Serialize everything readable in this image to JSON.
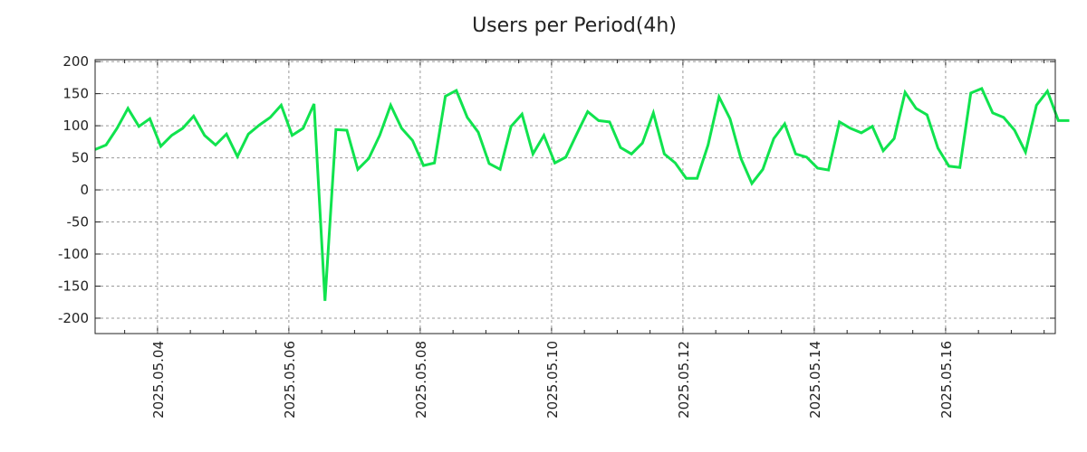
{
  "chart_data": {
    "type": "line",
    "title": "Users per Period(4h)",
    "xlabel": "",
    "ylabel": "",
    "x_unit": "days since 2025.05.04 00:00",
    "x_start": -0.95,
    "step_hours": 4,
    "xlim": [
      -0.95,
      13.67
    ],
    "ylim": [
      -224,
      203
    ],
    "grid": true,
    "line_color": "#10e34e",
    "yticks": [
      200,
      150,
      100,
      50,
      0,
      -50,
      -100,
      -150,
      -200
    ],
    "xticks": [
      {
        "day": 0,
        "label": "2025.05.04"
      },
      {
        "day": 2,
        "label": "2025.05.06"
      },
      {
        "day": 4,
        "label": "2025.05.08"
      },
      {
        "day": 6,
        "label": "2025.05.10"
      },
      {
        "day": 8,
        "label": "2025.05.12"
      },
      {
        "day": 10,
        "label": "2025.05.14"
      },
      {
        "day": 12,
        "label": "2025.05.16"
      }
    ],
    "series": [
      {
        "name": "Users",
        "values": [
          63,
          70,
          96,
          127,
          99,
          111,
          68,
          85,
          96,
          115,
          85,
          70,
          87,
          52,
          87,
          101,
          113,
          132,
          85,
          96,
          134,
          -173,
          94,
          93,
          32,
          49,
          85,
          132,
          96,
          77,
          38,
          42,
          146,
          155,
          113,
          90,
          41,
          32,
          99,
          118,
          56,
          85,
          42,
          51,
          87,
          122,
          108,
          106,
          66,
          56,
          73,
          120,
          56,
          42,
          18,
          18,
          70,
          145,
          111,
          49,
          10,
          32,
          80,
          103,
          56,
          51,
          34,
          31,
          106,
          96,
          89,
          99,
          61,
          80,
          152,
          127,
          117,
          65,
          37,
          35,
          151,
          158,
          120,
          113,
          93,
          59,
          132,
          154,
          108,
          108
        ]
      }
    ]
  }
}
